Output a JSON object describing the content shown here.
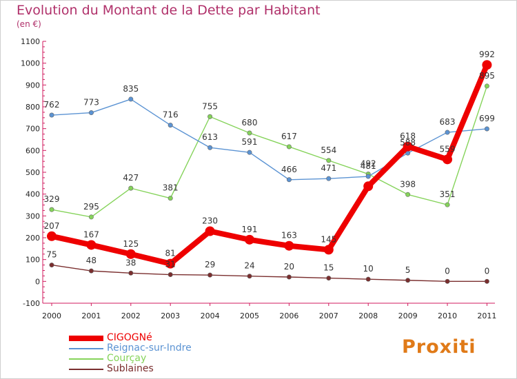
{
  "chart_data": {
    "type": "line",
    "title": "Evolution du Montant de la Dette par Habitant",
    "subtitle": "(en €)",
    "xlabel": "",
    "ylabel": "",
    "x": [
      "2000",
      "2001",
      "2002",
      "2003",
      "2004",
      "2005",
      "2006",
      "2007",
      "2008",
      "2009",
      "2010",
      "2011"
    ],
    "ylim": [
      -100,
      1100
    ],
    "yticks": [
      -100,
      0,
      100,
      200,
      300,
      400,
      500,
      600,
      700,
      800,
      900,
      1000,
      1100
    ],
    "grid": false,
    "legend_position": "bottom-left",
    "series": [
      {
        "name": "CIGOGNé",
        "color": "#ee0000",
        "emphasis": true,
        "values": [
          207,
          167,
          125,
          81,
          230,
          191,
          163,
          145,
          436,
          618,
          559,
          992
        ],
        "labels": [
          "207",
          "167",
          "125",
          "81",
          "230",
          "191",
          "163",
          "145",
          "",
          "618",
          "559",
          "992"
        ]
      },
      {
        "name": "Reignac-sur-Indre",
        "color": "#5b93d3",
        "values": [
          762,
          773,
          835,
          716,
          613,
          591,
          466,
          471,
          481,
          588,
          683,
          699
        ],
        "labels": [
          "762",
          "773",
          "835",
          "716",
          "613",
          "591",
          "466",
          "471",
          "481",
          "588",
          "683",
          "699"
        ]
      },
      {
        "name": "Courçay",
        "color": "#85d35a",
        "values": [
          329,
          295,
          427,
          381,
          755,
          680,
          617,
          554,
          492,
          398,
          351,
          895
        ],
        "labels": [
          "329",
          "295",
          "427",
          "381",
          "755",
          "680",
          "617",
          "554",
          "492",
          "398",
          "351",
          "895"
        ]
      },
      {
        "name": "Sublaines",
        "color": "#7a2e2e",
        "values": [
          75,
          48,
          38,
          31,
          29,
          24,
          20,
          15,
          10,
          5,
          0,
          0
        ],
        "labels": [
          "75",
          "48",
          "38",
          "31",
          "29",
          "24",
          "20",
          "15",
          "10",
          "5",
          "0",
          "0"
        ]
      }
    ]
  },
  "brand": {
    "text": "Proxiti"
  }
}
